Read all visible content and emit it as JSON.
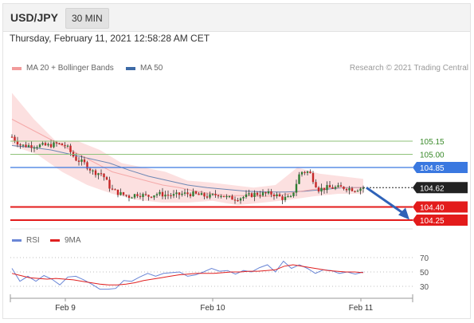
{
  "header": {
    "pair": "USD/JPY",
    "timeframe": "30 MIN"
  },
  "datetime": "Thursday, February 11, 2021 12:58:28 AM CET",
  "legend": {
    "ma20": {
      "label": "MA 20 + Bollinger Bands",
      "color": "#f29b9b"
    },
    "ma50": {
      "label": "MA 50",
      "color": "#3d6aa6"
    }
  },
  "credit": "Research © 2021 Trading Central",
  "rsi_legend": {
    "rsi": {
      "label": "RSI",
      "color": "#6a86d6"
    },
    "ma9": {
      "label": "9MA",
      "color": "#e02020"
    }
  },
  "chart_data": {
    "type": "candlestick",
    "symbol": "USD/JPY",
    "interval": "30 MIN",
    "x_ticks": [
      "Feb 9",
      "Feb 10",
      "Feb 11"
    ],
    "ylim": [
      104.2,
      105.4
    ],
    "levels": [
      {
        "value": 105.15,
        "label": "105.15",
        "kind": "resistance",
        "color": "#8fc27a",
        "text_color": "#3a8a2a"
      },
      {
        "value": 105.0,
        "label": "105.00",
        "kind": "resistance",
        "color": "#8fc27a",
        "text_color": "#3a8a2a"
      },
      {
        "value": 104.85,
        "label": "104.85",
        "kind": "pivot",
        "color": "#3a78e0"
      },
      {
        "value": 104.62,
        "label": "104.62",
        "kind": "last",
        "color": "#222222"
      },
      {
        "value": 104.4,
        "label": "104.40",
        "kind": "support",
        "color": "#e31b1b"
      },
      {
        "value": 104.25,
        "label": "104.25",
        "kind": "support",
        "color": "#e31b1b"
      }
    ],
    "close_path": [
      105.2,
      105.1,
      105.1,
      105.1,
      105.1,
      105.12,
      105.1,
      104.95,
      104.9,
      104.8,
      104.78,
      104.6,
      104.55,
      104.52,
      104.55,
      104.52,
      104.55,
      104.54,
      104.53,
      104.55,
      104.55,
      104.53,
      104.52,
      104.55,
      104.5,
      104.5,
      104.52,
      104.55,
      104.55,
      104.55,
      104.5,
      104.5,
      104.8,
      104.8,
      104.6,
      104.62,
      104.62,
      104.62,
      104.6,
      104.62
    ],
    "ma20": [
      105.4,
      105.3,
      105.2,
      105.1,
      105.0,
      104.9,
      104.8,
      104.75,
      104.7,
      104.65,
      104.62,
      104.58,
      104.55,
      104.53,
      104.53,
      104.52,
      104.53,
      104.57,
      104.6,
      104.62,
      104.62,
      104.62
    ],
    "ma50": [
      105.1,
      105.08,
      105.05,
      105.0,
      104.95,
      104.9,
      104.82,
      104.75,
      104.7,
      104.65,
      104.62,
      104.6,
      104.58,
      104.57,
      104.57,
      104.58,
      104.6,
      104.62,
      104.62
    ],
    "bollinger_upper": [
      105.7,
      105.4,
      105.15,
      105.15,
      105.05,
      104.9,
      104.85,
      104.8,
      104.7,
      104.68,
      104.65,
      104.62,
      104.65,
      104.85,
      104.78,
      104.75,
      104.72
    ],
    "bollinger_lower": [
      105.1,
      105.0,
      104.8,
      104.65,
      104.55,
      104.48,
      104.45,
      104.45,
      104.47,
      104.42,
      104.45,
      104.48,
      104.52,
      104.55,
      104.55
    ],
    "forecast_arrow": {
      "from": 104.62,
      "to": 104.4
    },
    "rsi": {
      "ticks": [
        70,
        50,
        30
      ],
      "ylim": [
        15,
        80
      ],
      "rsi": [
        55,
        37,
        44,
        37,
        45,
        40,
        32,
        43,
        44,
        39,
        33,
        26,
        26,
        27,
        38,
        37,
        43,
        48,
        44,
        48,
        49,
        50,
        44,
        46,
        50,
        55,
        51,
        52,
        47,
        52,
        50,
        56,
        60,
        50,
        65,
        55,
        60,
        55,
        48,
        53,
        52,
        48,
        50,
        47,
        50
      ],
      "ma9": [
        48,
        45,
        42,
        41,
        40,
        41,
        40,
        39,
        37,
        35,
        33,
        32,
        32,
        33,
        35,
        38,
        40,
        42,
        44,
        46,
        47,
        48,
        48,
        48,
        49,
        50,
        50,
        51,
        51,
        52,
        53,
        58,
        60,
        58,
        56,
        54,
        52,
        51,
        50,
        50,
        49
      ]
    }
  }
}
